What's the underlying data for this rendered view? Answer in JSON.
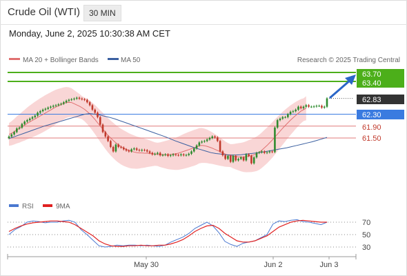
{
  "header": {
    "title": "Crude Oil (WTI)",
    "timeframe": "30 MIN",
    "datetime": "Monday, June 2, 2025 10:30:38 AM CET"
  },
  "legend": {
    "ma20": "MA 20 + Bollinger Bands",
    "ma50": "MA 50",
    "credit": "Research © 2025 Trading Central",
    "rsi": "RSI",
    "ma9": "9MA"
  },
  "colors": {
    "up": "#2e8b2e",
    "down": "#c0392b",
    "ma20": "#e07070",
    "ma50": "#3a5fa0",
    "band": "#f7c8c8",
    "resistance": "#4caf1a",
    "pivot": "#3a7be0",
    "support": "#e07a7a",
    "current": "#333333",
    "rsi": "#4a78d0",
    "ma9": "#e02020",
    "arrow": "#2a66c8"
  },
  "chart_data": {
    "type": "candlestick",
    "x_ticks": [
      "May 30",
      "Jun 2",
      "Jun 3"
    ],
    "ylim": [
      60.55,
      63.85
    ],
    "levels": [
      {
        "value": 63.7,
        "label": "63.70",
        "kind": "resistance"
      },
      {
        "value": 63.4,
        "label": "63.40",
        "kind": "resistance"
      },
      {
        "value": 62.83,
        "label": "62.83",
        "kind": "current"
      },
      {
        "value": 62.3,
        "label": "62.30",
        "kind": "pivot"
      },
      {
        "value": 61.9,
        "label": "61.90",
        "kind": "support"
      },
      {
        "value": 61.5,
        "label": "61.50",
        "kind": "support"
      }
    ],
    "close": [
      61.55,
      61.62,
      61.7,
      61.82,
      61.85,
      61.97,
      62.05,
      62.1,
      62.15,
      62.2,
      62.25,
      62.35,
      62.4,
      62.45,
      62.48,
      62.52,
      62.55,
      62.58,
      62.6,
      62.63,
      62.65,
      62.7,
      62.75,
      62.78,
      62.8,
      62.82,
      62.85,
      62.82,
      62.8,
      62.78,
      62.7,
      62.6,
      62.45,
      62.35,
      62.2,
      61.95,
      61.7,
      61.55,
      61.4,
      61.2,
      61.05,
      61.28,
      61.2,
      61.18,
      61.12,
      61.08,
      61.05,
      61.12,
      61.15,
      61.1,
      61.08,
      61.1,
      61.09,
      61.05,
      61.0,
      60.95,
      60.97,
      61.0,
      60.92,
      60.93,
      60.95,
      60.9,
      60.92,
      60.95,
      60.93,
      60.92,
      60.95,
      60.92,
      60.93,
      60.97,
      61.05,
      61.15,
      61.25,
      61.35,
      61.38,
      61.4,
      61.45,
      61.5,
      61.55,
      61.52,
      61.4,
      61.05,
      60.92,
      60.8,
      60.9,
      60.7,
      60.9,
      60.75,
      60.8,
      60.85,
      60.75,
      60.95,
      60.9,
      60.65,
      60.85,
      61.0,
      61.02,
      61.05,
      61.0,
      61.02,
      61.05,
      61.03,
      61.85,
      62.1,
      62.15,
      62.2,
      62.2,
      62.3,
      62.38,
      62.4,
      62.45,
      62.55,
      62.5,
      62.55,
      62.6,
      62.55,
      62.55,
      62.56,
      62.58,
      62.58,
      62.52,
      62.55,
      62.83
    ],
    "ma20": [
      61.62,
      61.66,
      61.71,
      61.77,
      61.82,
      61.88,
      61.93,
      61.99,
      62.04,
      62.09,
      62.14,
      62.19,
      62.24,
      62.29,
      62.34,
      62.39,
      62.44,
      62.49,
      62.54,
      62.58,
      62.62,
      62.66,
      62.69,
      62.7,
      62.69,
      62.65,
      62.61,
      62.57,
      62.52,
      62.46,
      62.39,
      62.31,
      62.22,
      62.12,
      62.01,
      61.9,
      61.8,
      61.69,
      61.59,
      61.5,
      61.42,
      61.34,
      61.27,
      61.21,
      61.16,
      61.12,
      61.08,
      61.05,
      61.03,
      61.01,
      61.0,
      61.0,
      60.99,
      60.99,
      60.98,
      60.97,
      60.96,
      60.95,
      60.94,
      60.94,
      60.94,
      60.94,
      60.95,
      60.96,
      60.97,
      60.99,
      61.02,
      61.05,
      61.08,
      61.11,
      61.14,
      61.17,
      61.2,
      61.24,
      61.25,
      61.24,
      61.22,
      61.19,
      61.16,
      61.12,
      61.08,
      61.04,
      61.0,
      60.96,
      60.93,
      60.91,
      60.89,
      60.88,
      60.87,
      60.86,
      60.86,
      60.87,
      60.89,
      60.91,
      60.94,
      60.97,
      61.02,
      61.09,
      61.17,
      61.25,
      61.34,
      61.43,
      61.53,
      61.63,
      61.73,
      61.83,
      61.92,
      62.01,
      62.1,
      62.18,
      62.26,
      62.33,
      62.4,
      62.45,
      62.5
    ],
    "ma50": [
      61.48,
      61.54,
      61.6,
      61.66,
      61.72,
      61.78,
      61.84,
      61.9,
      61.95,
      62.0,
      62.05,
      62.1,
      62.15,
      62.2,
      62.25,
      62.3,
      62.32,
      62.3,
      62.27,
      62.23,
      62.19,
      62.14,
      62.08,
      62.02,
      61.96,
      61.9,
      61.84,
      61.78,
      61.72,
      61.66,
      61.6,
      61.54,
      61.47,
      61.4,
      61.34,
      61.28,
      61.22,
      61.16,
      61.11,
      61.06,
      61.01,
      60.98,
      60.96,
      60.94,
      60.93,
      60.93,
      60.94,
      60.96,
      60.98,
      61.0,
      61.02,
      61.05,
      61.08,
      61.11,
      61.14,
      61.17,
      61.21,
      61.25,
      61.29,
      61.33,
      61.37,
      61.42,
      61.47,
      61.52
    ],
    "rsi": [
      50,
      58,
      63,
      70,
      72,
      71,
      69,
      70,
      70,
      72,
      73,
      70,
      58,
      50,
      41,
      32,
      30,
      31,
      33,
      32,
      33,
      33,
      32,
      33,
      32,
      31,
      33,
      38,
      42,
      46,
      52,
      60,
      65,
      70,
      64,
      53,
      39,
      34,
      31,
      36,
      38,
      40,
      45,
      50,
      67,
      72,
      71,
      73,
      74,
      71,
      70,
      68,
      66,
      70
    ],
    "ma9": [
      55,
      60,
      64,
      67,
      69,
      70,
      71,
      72,
      72,
      71,
      70,
      66,
      60,
      54,
      48,
      40,
      35,
      32,
      31,
      31,
      32,
      32,
      33,
      32,
      32,
      33,
      33,
      35,
      38,
      42,
      48,
      55,
      60,
      64,
      65,
      60,
      52,
      46,
      40,
      38,
      38,
      40,
      44,
      48,
      55,
      62,
      66,
      70,
      72,
      73,
      72,
      71,
      70,
      70
    ],
    "rsi_levels": [
      70,
      50,
      30
    ]
  }
}
